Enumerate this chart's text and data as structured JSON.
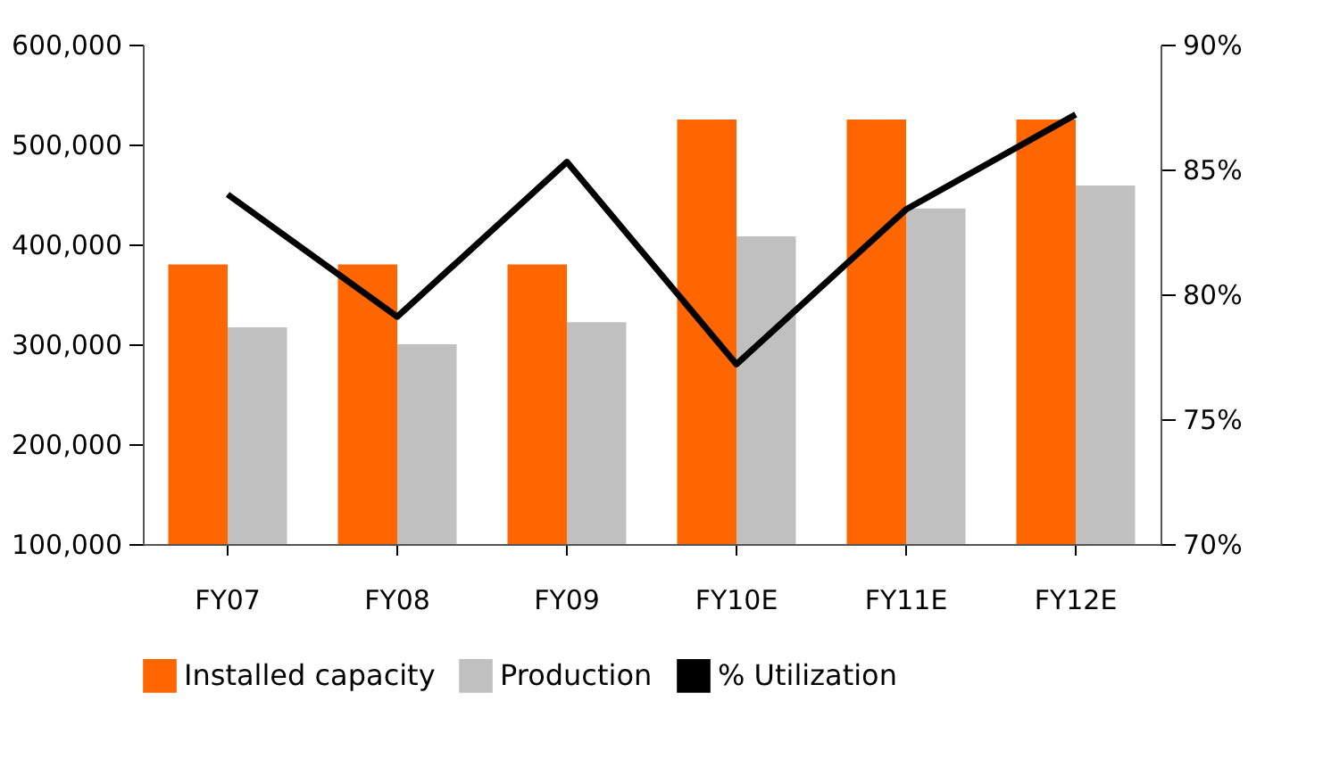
{
  "chart_data": {
    "type": "bar",
    "categories": [
      "FY07",
      "FY08",
      "FY09",
      "FY10E",
      "FY11E",
      "FY12E"
    ],
    "series": [
      {
        "name": "Installed capacity",
        "color": "#ff6600",
        "values": [
          380000,
          380000,
          380000,
          525000,
          525000,
          525000
        ]
      },
      {
        "name": "Production",
        "color": "#c0c0c0",
        "values": [
          317000,
          300000,
          322000,
          408000,
          436000,
          459000
        ]
      },
      {
        "name": "% Utilization",
        "type": "line",
        "axis": "y2",
        "color": "#000000",
        "values": [
          84.0,
          79.1,
          85.3,
          77.2,
          83.4,
          87.2
        ]
      }
    ],
    "ylim": [
      100000,
      600000
    ],
    "yticks": [
      {
        "value": 100000,
        "label": "100,000"
      },
      {
        "value": 200000,
        "label": "200,000"
      },
      {
        "value": 300000,
        "label": "300,000"
      },
      {
        "value": 400000,
        "label": "400,000"
      },
      {
        "value": 500000,
        "label": "500,000"
      },
      {
        "value": 600000,
        "label": "600,000"
      }
    ],
    "y2lim": [
      70,
      90
    ],
    "y2ticks": [
      {
        "value": 70,
        "label": "70%"
      },
      {
        "value": 75,
        "label": "75%"
      },
      {
        "value": 80,
        "label": "80%"
      },
      {
        "value": 85,
        "label": "85%"
      },
      {
        "value": 90,
        "label": "90%"
      }
    ],
    "legend": "bottom",
    "grid": false,
    "marker": "none",
    "line_style": "solid"
  }
}
